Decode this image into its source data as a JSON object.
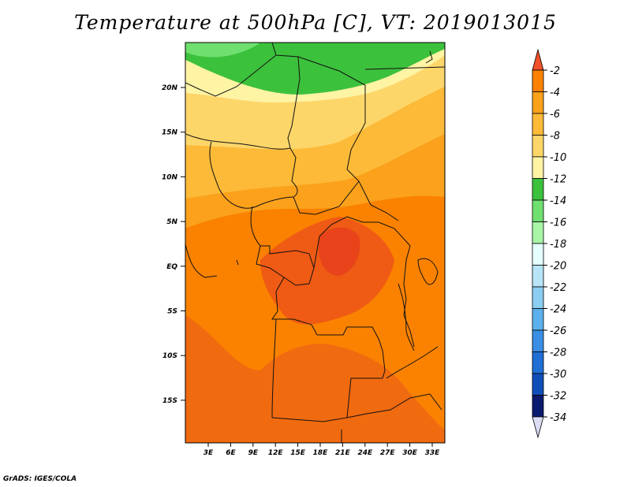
{
  "title": "Temperature at 500hPa [C], VT: 2019013015",
  "credit": "GrADS: IGES/COLA",
  "map": {
    "lat_labels": [
      "20N",
      "15N",
      "10N",
      "5N",
      "EQ",
      "5S",
      "10S",
      "15S"
    ],
    "lon_labels": [
      "3E",
      "6E",
      "9E",
      "12E",
      "15E",
      "18E",
      "21E",
      "24E",
      "27E",
      "30E",
      "33E"
    ]
  },
  "colorbar": {
    "labels": [
      "-2",
      "-4",
      "-6",
      "-8",
      "-10",
      "-12",
      "-14",
      "-16",
      "-18",
      "-20",
      "-22",
      "-24",
      "-26",
      "-28",
      "-30",
      "-32",
      "-34"
    ],
    "colors": [
      "#f0502a",
      "#fa8200",
      "#fba11c",
      "#fcba38",
      "#fdd66a",
      "#fff3a4",
      "#3cc13c",
      "#6fe06f",
      "#a8f5a8",
      "#e6ffff",
      "#b8e4f7",
      "#8bcef2",
      "#5cb1ec",
      "#3a8ee3",
      "#1f6fd4",
      "#0f4fb8",
      "#0a1a6e",
      "#dcdcf4"
    ]
  }
}
